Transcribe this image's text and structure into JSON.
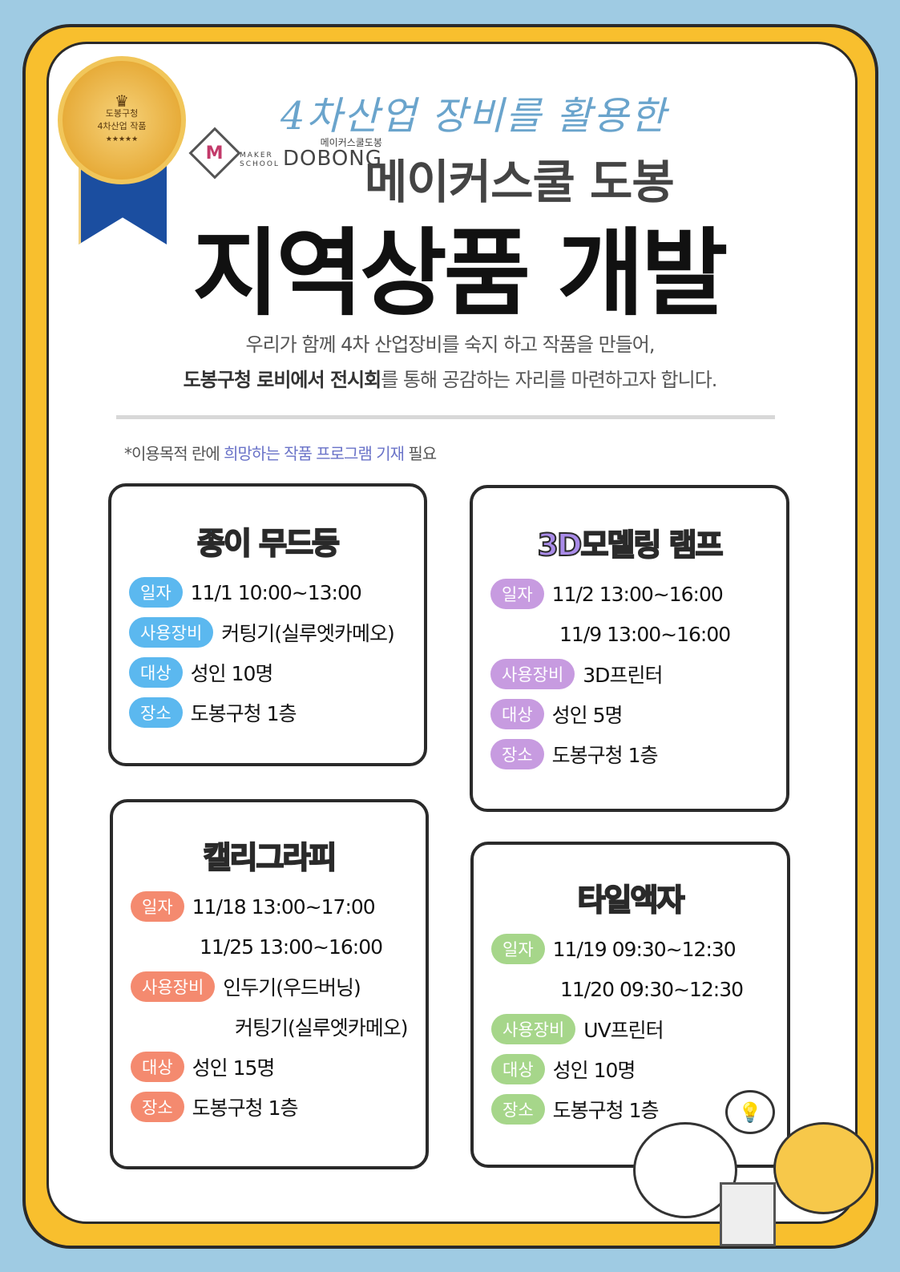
{
  "badge": {
    "line1": "도봉구청",
    "line2": "4차산업 작품",
    "stars": "★★★★★"
  },
  "header": {
    "script": "4차산업 장비를 활용한",
    "logo_ko": "메이커스쿨도봉",
    "logo_maker": "MAKER",
    "logo_school": "SCHOOL",
    "logo_en": "DOBONG",
    "subtitle": "메이커스쿨 도봉",
    "title": "지역상품 개발"
  },
  "intro": {
    "line1": "우리가 함께 4차 산업장비를 숙지 하고 작품을 만들어,",
    "line2_bold": "도봉구청 로비에서 전시회",
    "line2_rest": "를 통해 공감하는 자리를 마련하고자 합니다."
  },
  "note": {
    "prefix": "*이용목적 란에 ",
    "highlight": "희망하는 작품 프로그램 기재",
    "suffix": " 필요"
  },
  "colors": {
    "blue": "#5bb8ef",
    "purple": "#c79be0",
    "salmon": "#f48a6f",
    "green": "#a6d68a",
    "frame": "#f8bf2e",
    "background": "#9fcbe3"
  },
  "cards": [
    {
      "title": "종이 무드등",
      "rows": [
        {
          "label": "일자",
          "value": "11/1 10:00~13:00"
        },
        {
          "label": "사용장비",
          "value": "커팅기(실루엣카메오)"
        },
        {
          "label": "대상",
          "value": "성인 10명"
        },
        {
          "label": "장소",
          "value": "도봉구청 1층"
        }
      ]
    },
    {
      "title": "3D모델링 램프",
      "rows": [
        {
          "label": "일자",
          "value": "11/2 13:00~16:00",
          "extra": "11/9 13:00~16:00"
        },
        {
          "label": "사용장비",
          "value": "3D프린터"
        },
        {
          "label": "대상",
          "value": "성인 5명"
        },
        {
          "label": "장소",
          "value": "도봉구청 1층"
        }
      ]
    },
    {
      "title": "캘리그라피",
      "rows": [
        {
          "label": "일자",
          "value": "11/18 13:00~17:00",
          "extra": "11/25 13:00~16:00"
        },
        {
          "label": "사용장비",
          "value": "인두기(우드버닝)",
          "extra": "커팅기(실루엣카메오)"
        },
        {
          "label": "대상",
          "value": "성인 15명"
        },
        {
          "label": "장소",
          "value": "도봉구청 1층"
        }
      ]
    },
    {
      "title": "타일액자",
      "rows": [
        {
          "label": "일자",
          "value": "11/19 09:30~12:30",
          "extra": "11/20 09:30~12:30"
        },
        {
          "label": "사용장비",
          "value": "UV프린터"
        },
        {
          "label": "대상",
          "value": "성인 10명"
        },
        {
          "label": "장소",
          "value": "도봉구청 1층"
        }
      ]
    }
  ]
}
